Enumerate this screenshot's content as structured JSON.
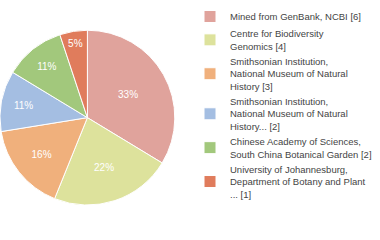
{
  "chart_data": {
    "type": "pie",
    "categories": [
      "Mined from GenBank, NCBI [6]",
      "Centre for Biodiversity\nGenomics [4]",
      "Smithsonian Institution,\nNational Museum of Natural\nHistory [3]",
      "Smithsonian Institution,\nNational Museum of Natural\nHistory... [2]",
      "Chinese Academy of Sciences,\nSouth China Botanical Garden [2]",
      "University of Johannesburg,\nDepartment of Botany and Plant\n... [1]"
    ],
    "values": [
      33,
      22,
      16,
      11,
      11,
      5
    ],
    "value_labels": [
      "33%",
      "22%",
      "16%",
      "11%",
      "11%",
      "5%"
    ],
    "colors": [
      "#e0a39c",
      "#dde29c",
      "#f0b07c",
      "#a4bee2",
      "#a2c87c",
      "#e07c5c"
    ],
    "data_labels": true,
    "legend": "right"
  }
}
